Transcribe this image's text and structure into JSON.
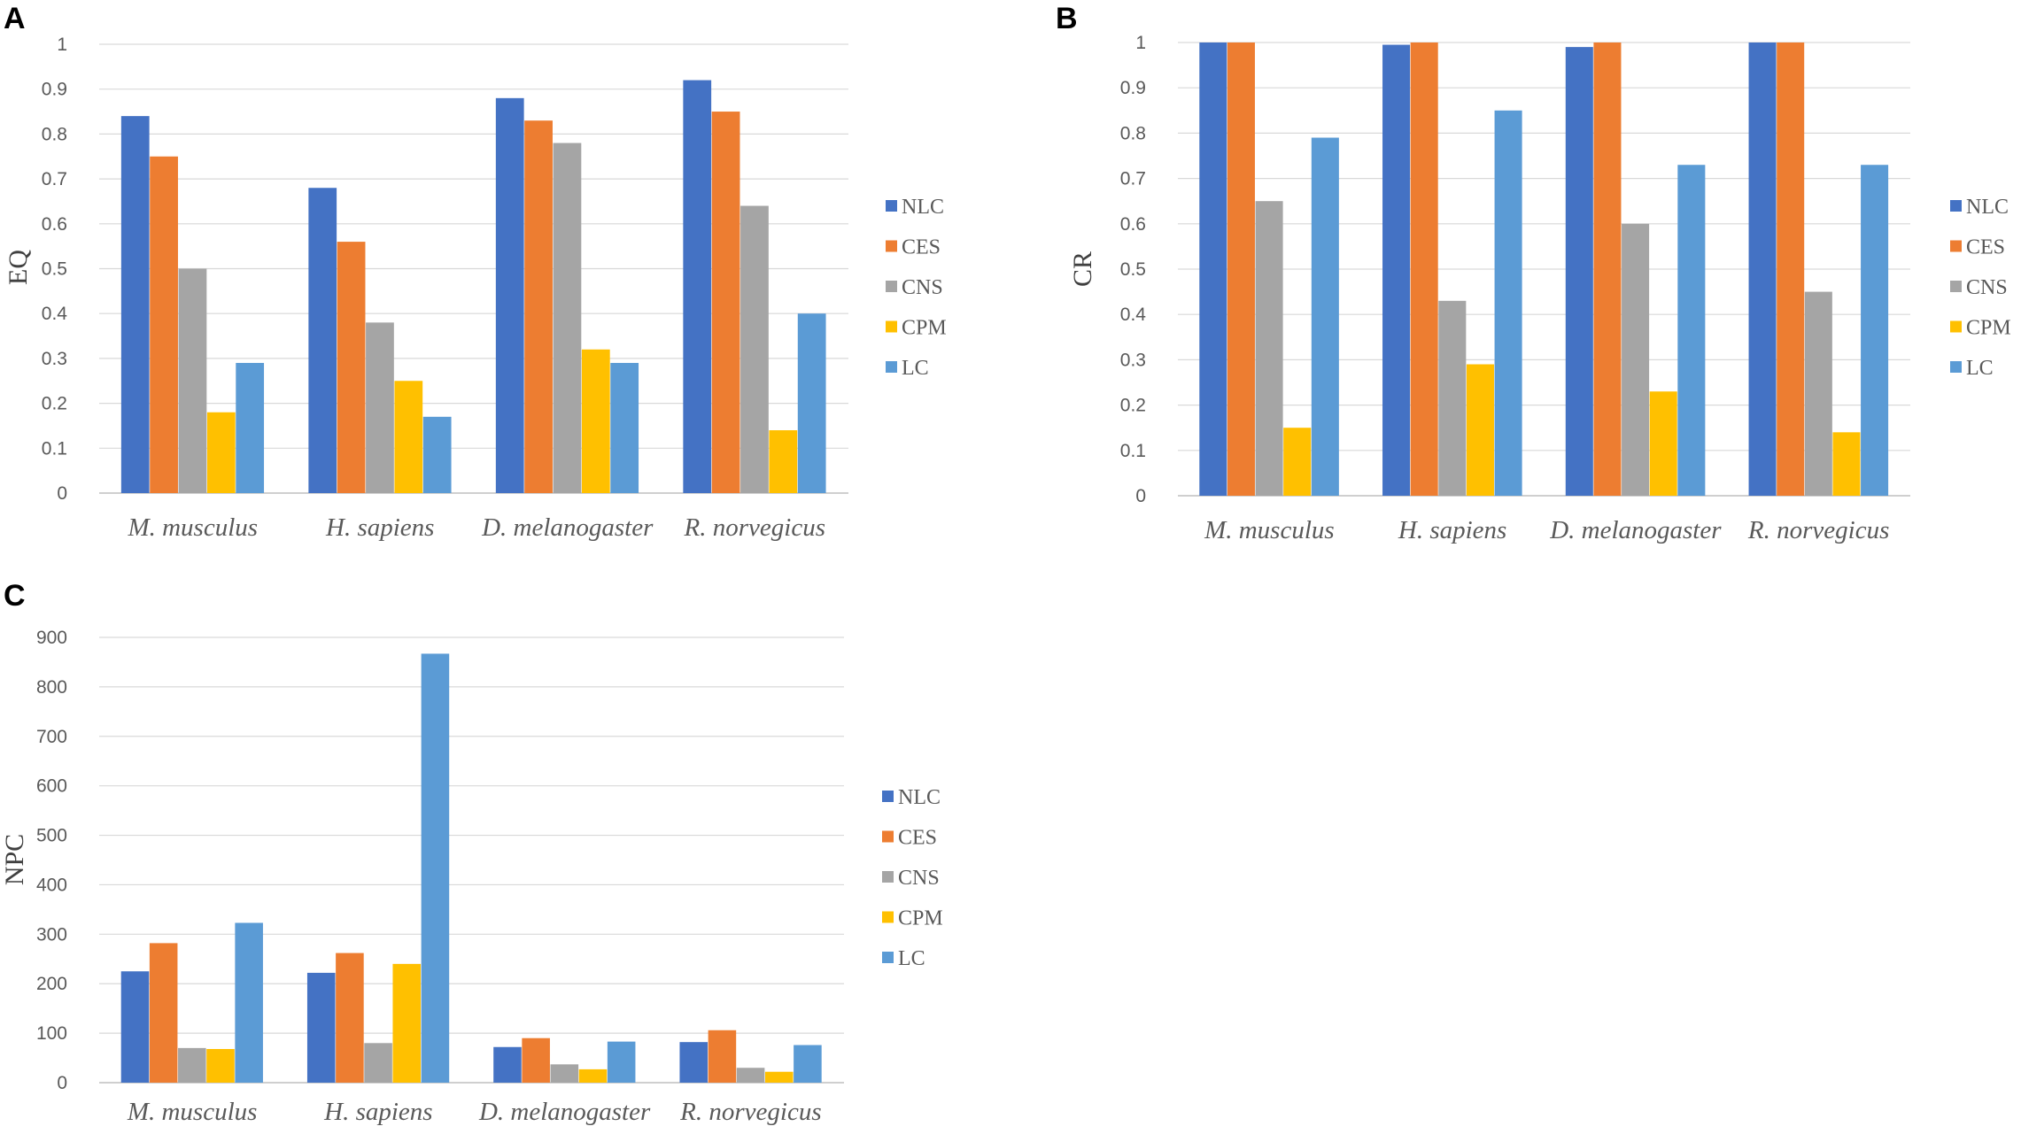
{
  "series_colors": {
    "NLC": "#4472C4",
    "CES": "#ED7D31",
    "CNS": "#A5A5A5",
    "CPM": "#FFC000",
    "LC": "#5B9BD5"
  },
  "chart_data": [
    {
      "panel": "A",
      "type": "bar",
      "title": "",
      "xlabel": "",
      "ylabel": "EQ",
      "ylim": [
        0,
        1
      ],
      "yticks": [
        "0",
        "0.1",
        "0.2",
        "0.3",
        "0.4",
        "0.5",
        "0.6",
        "0.7",
        "0.8",
        "0.9",
        "1"
      ],
      "categories": [
        "M. musculus",
        "H. sapiens",
        "D. melanogaster",
        "R. norvegicus"
      ],
      "series": [
        {
          "name": "NLC",
          "values": [
            0.84,
            0.68,
            0.88,
            0.92
          ]
        },
        {
          "name": "CES",
          "values": [
            0.75,
            0.56,
            0.83,
            0.85
          ]
        },
        {
          "name": "CNS",
          "values": [
            0.5,
            0.38,
            0.78,
            0.64
          ]
        },
        {
          "name": "CPM",
          "values": [
            0.18,
            0.25,
            0.32,
            0.14
          ]
        },
        {
          "name": "LC",
          "values": [
            0.29,
            0.17,
            0.29,
            0.4
          ]
        }
      ],
      "legend": "right"
    },
    {
      "panel": "B",
      "type": "bar",
      "title": "",
      "xlabel": "",
      "ylabel": "CR",
      "ylim": [
        0,
        1
      ],
      "yticks": [
        "0",
        "0.1",
        "0.2",
        "0.3",
        "0.4",
        "0.5",
        "0.6",
        "0.7",
        "0.8",
        "0.9",
        "1"
      ],
      "categories": [
        "M. musculus",
        "H. sapiens",
        "D. melanogaster",
        "R. norvegicus"
      ],
      "series": [
        {
          "name": "NLC",
          "values": [
            1.0,
            0.995,
            0.99,
            1.0
          ]
        },
        {
          "name": "CES",
          "values": [
            1.0,
            1.0,
            1.0,
            1.0
          ]
        },
        {
          "name": "CNS",
          "values": [
            0.65,
            0.43,
            0.6,
            0.45
          ]
        },
        {
          "name": "CPM",
          "values": [
            0.15,
            0.29,
            0.23,
            0.14
          ]
        },
        {
          "name": "LC",
          "values": [
            0.79,
            0.85,
            0.73,
            0.73
          ]
        }
      ],
      "legend": "right"
    },
    {
      "panel": "C",
      "type": "bar",
      "title": "",
      "xlabel": "",
      "ylabel": "NPC",
      "ylim": [
        0,
        900
      ],
      "yticks": [
        "0",
        "100",
        "200",
        "300",
        "400",
        "500",
        "600",
        "700",
        "800",
        "900"
      ],
      "categories": [
        "M. musculus",
        "H. sapiens",
        "D. melanogaster",
        "R. norvegicus"
      ],
      "series": [
        {
          "name": "NLC",
          "values": [
            225,
            222,
            72,
            82
          ]
        },
        {
          "name": "CES",
          "values": [
            282,
            262,
            90,
            106
          ]
        },
        {
          "name": "CNS",
          "values": [
            70,
            80,
            37,
            30
          ]
        },
        {
          "name": "CPM",
          "values": [
            68,
            240,
            27,
            22
          ]
        },
        {
          "name": "LC",
          "values": [
            323,
            867,
            83,
            76
          ]
        }
      ],
      "legend": "right"
    }
  ]
}
